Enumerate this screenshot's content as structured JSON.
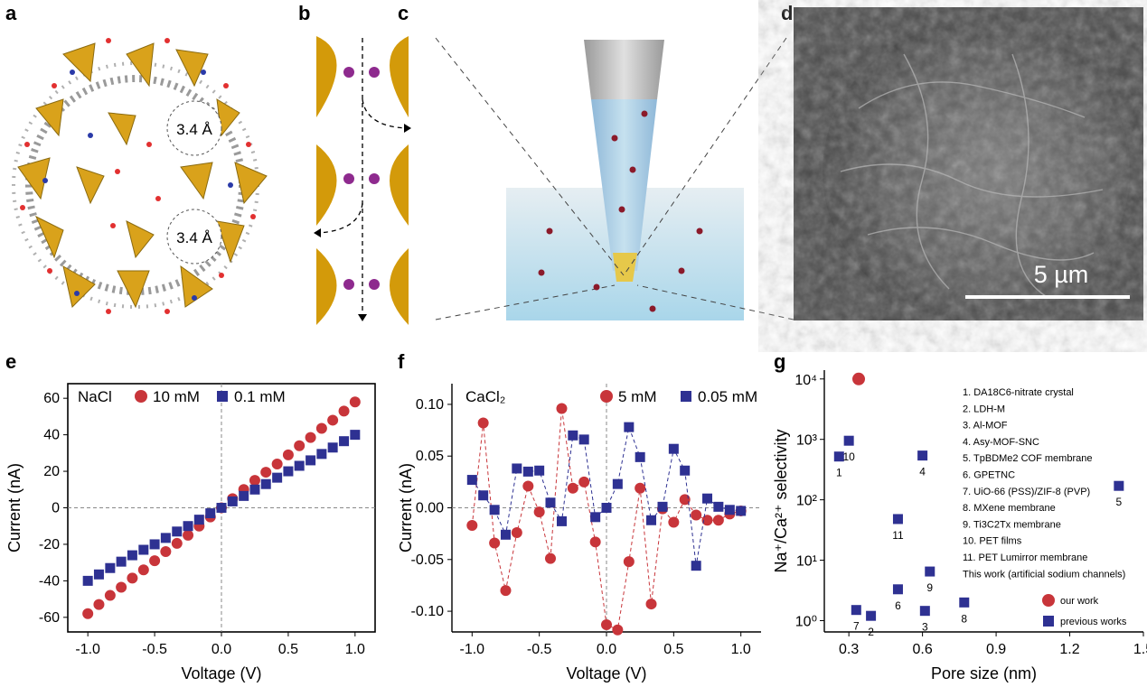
{
  "panels": {
    "a": {
      "letter": "a",
      "pore_label_1": "3.4 Å",
      "pore_label_2": "3.4 Å"
    },
    "b": {
      "letter": "b"
    },
    "c": {
      "letter": "c"
    },
    "d": {
      "letter": "d",
      "scale_bar": "5 µm"
    },
    "e": {
      "letter": "e"
    },
    "f": {
      "letter": "f"
    },
    "g": {
      "letter": "g"
    }
  },
  "colors": {
    "red": "#c8353a",
    "blue": "#2e3192",
    "gold": "#d9a21b",
    "purple": "#8e2a8e"
  },
  "chart_data": [
    {
      "id": "e",
      "type": "scatter",
      "xlabel": "Voltage (V)",
      "ylabel": "Current (nA)",
      "xlim": [
        -1.15,
        1.15
      ],
      "ylim": [
        -68,
        68
      ],
      "xticks": [
        "-1.0",
        "-0.5",
        "0.0",
        "0.5",
        "1.0"
      ],
      "xtick_values": [
        -1.0,
        -0.5,
        0.0,
        0.5,
        1.0
      ],
      "yticks": [
        "-60",
        "-40",
        "-20",
        "0",
        "20",
        "40",
        "60"
      ],
      "ytick_values": [
        -60,
        -40,
        -20,
        0,
        20,
        40,
        60
      ],
      "legend_title": "NaCl",
      "series": [
        {
          "name": "10 mM",
          "marker": "circle",
          "color": "#c8353a",
          "x": [
            -1.0,
            -0.917,
            -0.833,
            -0.75,
            -0.667,
            -0.583,
            -0.5,
            -0.417,
            -0.333,
            -0.25,
            -0.167,
            -0.083,
            0.0,
            0.083,
            0.167,
            0.25,
            0.333,
            0.417,
            0.5,
            0.583,
            0.667,
            0.75,
            0.833,
            0.917,
            1.0
          ],
          "y": [
            -58,
            -53,
            -48,
            -43.5,
            -38.5,
            -34,
            -29,
            -24,
            -19.5,
            -15,
            -10,
            -5,
            0,
            5,
            10,
            15,
            19.5,
            24,
            29,
            34,
            38.5,
            43.5,
            48,
            53,
            58
          ]
        },
        {
          "name": "0.1 mM",
          "marker": "square",
          "color": "#2e3192",
          "x": [
            -1.0,
            -0.917,
            -0.833,
            -0.75,
            -0.667,
            -0.583,
            -0.5,
            -0.417,
            -0.333,
            -0.25,
            -0.167,
            -0.083,
            0.0,
            0.083,
            0.167,
            0.25,
            0.333,
            0.417,
            0.5,
            0.583,
            0.667,
            0.75,
            0.833,
            0.917,
            1.0
          ],
          "y": [
            -40,
            -36.5,
            -33,
            -29.5,
            -26,
            -23,
            -20,
            -16.5,
            -13,
            -10,
            -6.5,
            -3,
            0,
            3.5,
            6.5,
            10,
            13,
            16.5,
            20,
            23,
            26,
            29.5,
            33,
            36.5,
            40
          ]
        }
      ]
    },
    {
      "id": "f",
      "type": "line",
      "xlabel": "Voltage (V)",
      "ylabel": "Current (nA)",
      "xlim": [
        -1.15,
        1.15
      ],
      "ylim": [
        -0.12,
        0.12
      ],
      "xticks": [
        "-1.0",
        "-0.5",
        "0.0",
        "0.5",
        "1.0"
      ],
      "xtick_values": [
        -1.0,
        -0.5,
        0.0,
        0.5,
        1.0
      ],
      "yticks": [
        "-0.10",
        "-0.05",
        "0.00",
        "0.05",
        "0.10"
      ],
      "ytick_values": [
        -0.1,
        -0.05,
        0.0,
        0.05,
        0.1
      ],
      "legend_title": "CaCl₂",
      "series": [
        {
          "name": "5 mM",
          "marker": "circle",
          "color": "#c8353a",
          "x": [
            -1.0,
            -0.917,
            -0.833,
            -0.75,
            -0.667,
            -0.583,
            -0.5,
            -0.417,
            -0.333,
            -0.25,
            -0.167,
            -0.083,
            0.0,
            0.083,
            0.167,
            0.25,
            0.333,
            0.417,
            0.5,
            0.583,
            0.667,
            0.75,
            0.833,
            0.917,
            1.0
          ],
          "y": [
            -0.017,
            0.082,
            -0.034,
            -0.08,
            -0.024,
            0.021,
            -0.004,
            -0.049,
            0.096,
            0.019,
            0.025,
            -0.033,
            -0.113,
            -0.118,
            -0.052,
            0.019,
            -0.093,
            -0.001,
            -0.014,
            0.008,
            -0.007,
            -0.012,
            -0.012,
            -0.006,
            -0.003
          ]
        },
        {
          "name": "0.05 mM",
          "marker": "square",
          "color": "#2e3192",
          "x": [
            -1.0,
            -0.917,
            -0.833,
            -0.75,
            -0.667,
            -0.583,
            -0.5,
            -0.417,
            -0.333,
            -0.25,
            -0.167,
            -0.083,
            0.0,
            0.083,
            0.167,
            0.25,
            0.333,
            0.417,
            0.5,
            0.583,
            0.667,
            0.75,
            0.833,
            0.917,
            1.0
          ],
          "y": [
            0.027,
            0.012,
            -0.002,
            -0.026,
            0.038,
            0.035,
            0.036,
            0.005,
            -0.013,
            0.07,
            0.066,
            -0.009,
            0.0,
            0.023,
            0.078,
            0.049,
            -0.012,
            0.001,
            0.057,
            0.036,
            -0.056,
            0.009,
            0.001,
            -0.002,
            -0.003
          ]
        }
      ]
    },
    {
      "id": "g",
      "type": "scatter",
      "xlabel": "Pore size (nm)",
      "ylabel": "Na⁺/Ca²⁺ selectivity",
      "ylog": true,
      "xlim": [
        0.2,
        1.5
      ],
      "ylim": [
        0.65,
        14000
      ],
      "xticks": [
        "0.3",
        "0.6",
        "0.9",
        "1.2",
        "1.5"
      ],
      "xtick_values": [
        0.3,
        0.6,
        0.9,
        1.2,
        1.5
      ],
      "yticks": [
        "10⁰",
        "10¹",
        "10²",
        "10³",
        "10⁴"
      ],
      "ytick_values": [
        1,
        10,
        100,
        1000,
        10000
      ],
      "series": [
        {
          "name": "our work",
          "marker": "circle",
          "color": "#c8353a",
          "x": [
            0.34
          ],
          "y": [
            10000
          ],
          "labels": [
            ""
          ]
        },
        {
          "name": "previous works",
          "marker": "square",
          "color": "#2e3192",
          "x": [
            0.26,
            0.3,
            0.6,
            0.61,
            1.4,
            0.5,
            0.63,
            0.5,
            0.77,
            0.33,
            0.39
          ],
          "y": [
            520,
            950,
            540,
            1.45,
            170,
            3.3,
            6.5,
            48,
            2.0,
            1.5,
            1.2
          ],
          "labels": [
            "1",
            "10",
            "4",
            "3",
            "5",
            "6",
            "9",
            "11",
            "8",
            "7",
            "2"
          ]
        }
      ],
      "list": [
        "1. DA18C6-nitrate crystal",
        "2. LDH-M",
        "3. Al-MOF",
        "4. Asy-MOF-SNC",
        "5. TpBDMe2 COF membrane",
        "6. GPETNC",
        "7. UiO-66 (PSS)/ZIF-8 (PVP)",
        "8. MXene membrane",
        "9. Ti3C2Tx membrane",
        "10. PET films",
        "11. PET Lumirror membrane",
        "This work (artificial sodium channels)"
      ]
    }
  ]
}
